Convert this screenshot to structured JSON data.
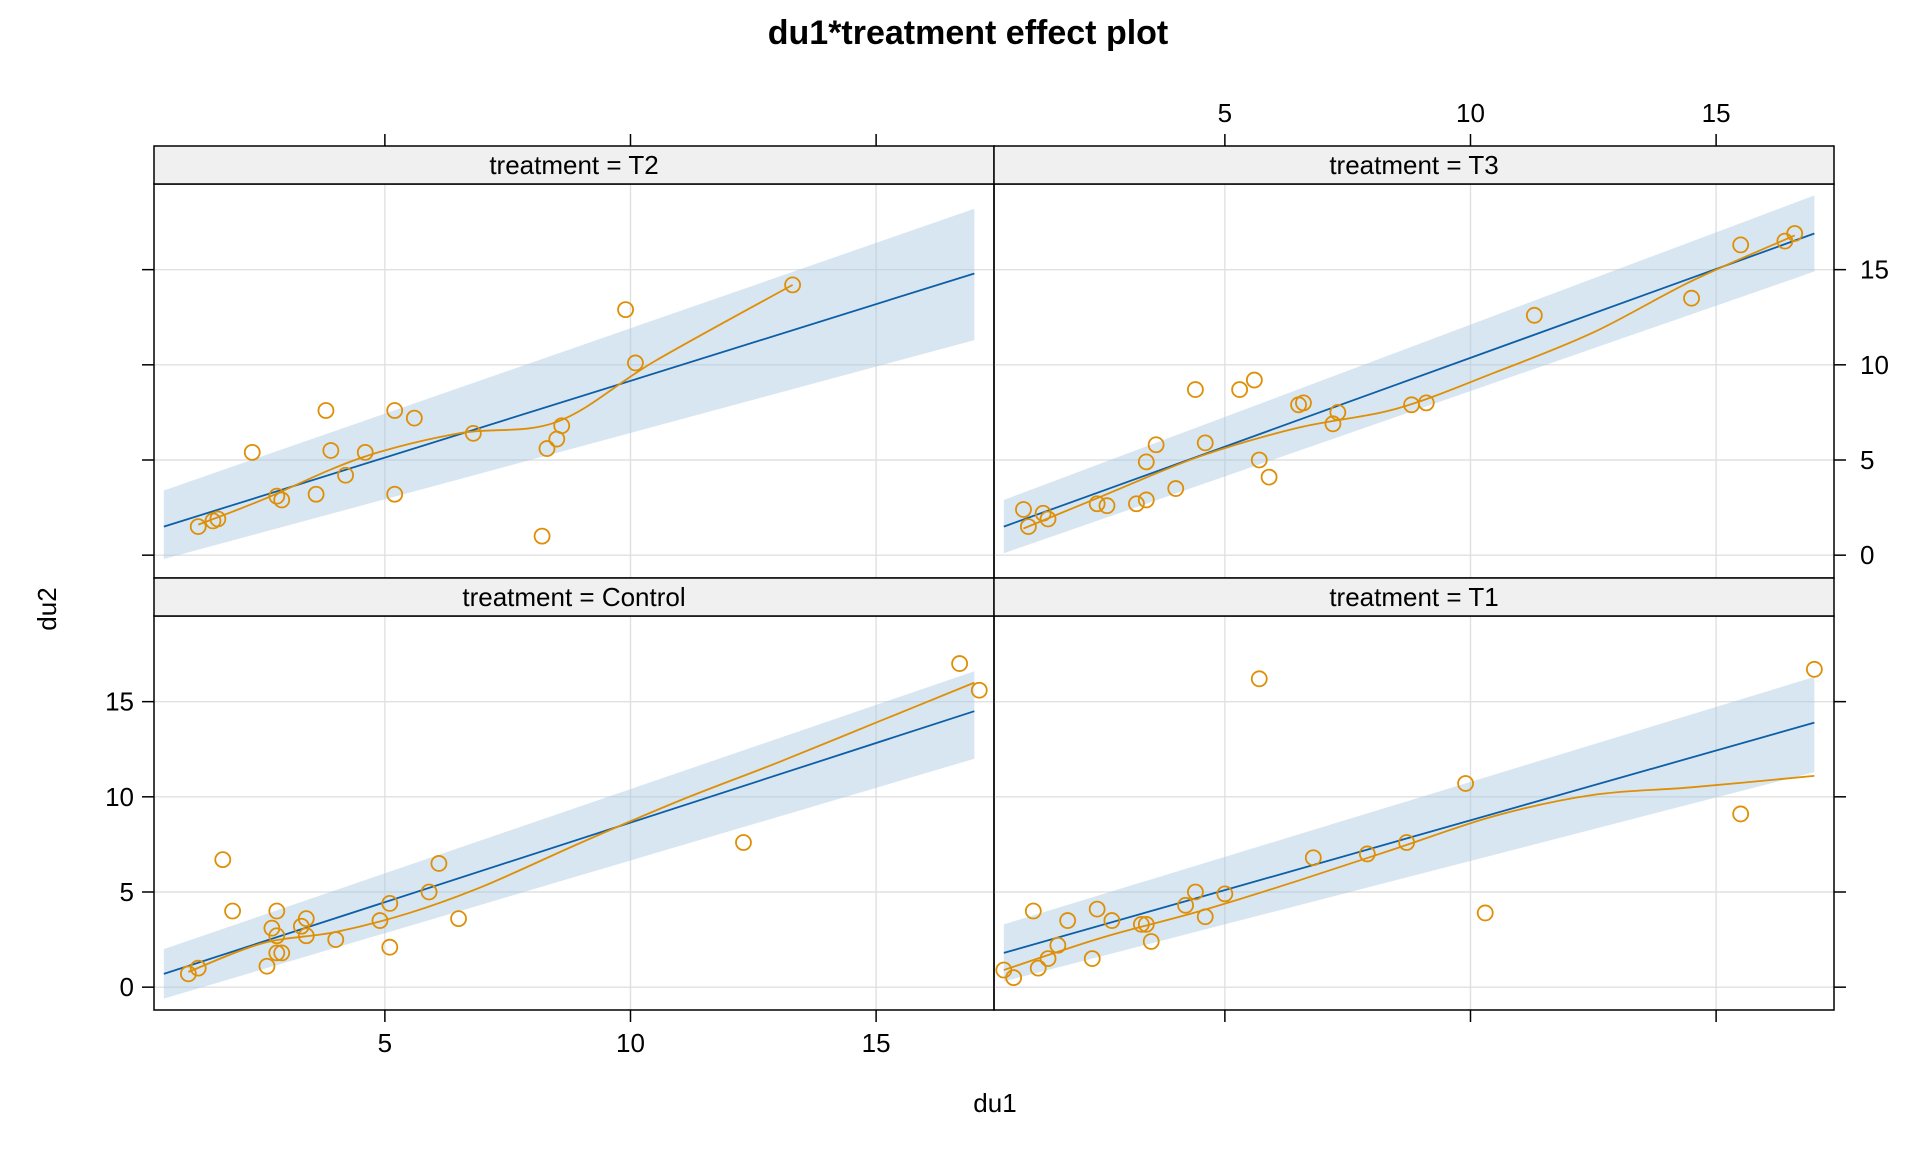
{
  "chart_data": {
    "type": "scatter",
    "title": "du1*treatment effect plot",
    "xlabel": "du1",
    "ylabel": "du2",
    "xlim": [
      0.3,
      17.4
    ],
    "ylim": [
      -1.2,
      19.5
    ],
    "x_ticks": [
      5,
      10,
      15
    ],
    "y_ticks": [
      0,
      5,
      10,
      15
    ],
    "grid": true,
    "layout": "2x2",
    "colors": {
      "band": "#a9c7e3",
      "fit": "#0d5fa6",
      "points": "#de8f05",
      "strip": "#f0f0f0"
    },
    "panels": [
      {
        "label": "treatment = T2",
        "row": 0,
        "col": 0,
        "fit": {
          "x": [
            0.5,
            17.0
          ],
          "y": [
            1.5,
            14.8
          ]
        },
        "band": {
          "x": [
            0.5,
            17.0
          ],
          "upper": [
            3.4,
            18.2
          ],
          "lower": [
            -0.2,
            11.3
          ]
        },
        "smooth": {
          "x": [
            1.2,
            2.5,
            4.5,
            6.5,
            8.5,
            10.5,
            13.3
          ],
          "y": [
            1.6,
            2.9,
            5.1,
            6.4,
            7.0,
            10.2,
            14.2
          ]
        },
        "points": [
          [
            1.2,
            1.5
          ],
          [
            1.5,
            1.8
          ],
          [
            1.6,
            1.9
          ],
          [
            2.3,
            5.4
          ],
          [
            2.8,
            3.1
          ],
          [
            2.9,
            2.9
          ],
          [
            3.6,
            3.2
          ],
          [
            3.8,
            7.6
          ],
          [
            3.9,
            5.5
          ],
          [
            4.2,
            4.2
          ],
          [
            4.6,
            5.4
          ],
          [
            5.2,
            7.6
          ],
          [
            5.2,
            3.2
          ],
          [
            5.6,
            7.2
          ],
          [
            6.8,
            6.4
          ],
          [
            8.2,
            1.0
          ],
          [
            8.3,
            5.6
          ],
          [
            8.5,
            6.1
          ],
          [
            8.6,
            6.8
          ],
          [
            9.9,
            12.9
          ],
          [
            10.1,
            10.1
          ],
          [
            13.3,
            14.2
          ]
        ]
      },
      {
        "label": "treatment = T3",
        "row": 0,
        "col": 1,
        "fit": {
          "x": [
            0.5,
            17.0
          ],
          "y": [
            1.5,
            16.9
          ]
        },
        "band": {
          "x": [
            0.5,
            17.0
          ],
          "upper": [
            2.9,
            18.9
          ],
          "lower": [
            0.1,
            14.9
          ]
        },
        "smooth": {
          "x": [
            0.9,
            2.5,
            4.5,
            6.5,
            8.5,
            10.5,
            12.5,
            14.5,
            16.6
          ],
          "y": [
            1.4,
            3.1,
            5.2,
            6.7,
            7.7,
            9.6,
            11.7,
            14.4,
            16.8
          ]
        },
        "points": [
          [
            0.9,
            2.4
          ],
          [
            1.0,
            1.5
          ],
          [
            1.3,
            2.2
          ],
          [
            1.4,
            1.9
          ],
          [
            2.4,
            2.7
          ],
          [
            2.6,
            2.6
          ],
          [
            3.2,
            2.7
          ],
          [
            3.4,
            2.9
          ],
          [
            3.4,
            4.9
          ],
          [
            3.6,
            5.8
          ],
          [
            4.0,
            3.5
          ],
          [
            4.4,
            8.7
          ],
          [
            4.6,
            5.9
          ],
          [
            5.3,
            8.7
          ],
          [
            5.6,
            9.2
          ],
          [
            5.7,
            5.0
          ],
          [
            5.9,
            4.1
          ],
          [
            6.5,
            7.9
          ],
          [
            6.6,
            8.0
          ],
          [
            7.2,
            6.9
          ],
          [
            7.3,
            7.5
          ],
          [
            8.8,
            7.9
          ],
          [
            9.1,
            8.0
          ],
          [
            11.3,
            12.6
          ],
          [
            14.5,
            13.5
          ],
          [
            15.5,
            16.3
          ],
          [
            16.4,
            16.5
          ],
          [
            16.6,
            16.9
          ]
        ]
      },
      {
        "label": "treatment = Control",
        "row": 1,
        "col": 0,
        "fit": {
          "x": [
            0.5,
            17.0
          ],
          "y": [
            0.7,
            14.5
          ]
        },
        "band": {
          "x": [
            0.5,
            17.0
          ],
          "upper": [
            2.0,
            16.6
          ],
          "lower": [
            -0.6,
            12.0
          ]
        },
        "smooth": {
          "x": [
            1.0,
            2.5,
            4.0,
            5.5,
            7.0,
            9.0,
            11.0,
            13.0,
            15.0,
            17.0
          ],
          "y": [
            0.8,
            2.3,
            2.9,
            3.9,
            5.3,
            7.6,
            9.8,
            11.8,
            13.9,
            16.0
          ]
        },
        "points": [
          [
            1.0,
            0.7
          ],
          [
            1.2,
            1.0
          ],
          [
            1.7,
            6.7
          ],
          [
            1.9,
            4.0
          ],
          [
            2.6,
            1.1
          ],
          [
            2.7,
            3.1
          ],
          [
            2.8,
            1.8
          ],
          [
            2.8,
            4.0
          ],
          [
            2.8,
            2.7
          ],
          [
            2.9,
            1.8
          ],
          [
            3.3,
            3.2
          ],
          [
            3.4,
            2.7
          ],
          [
            3.4,
            3.6
          ],
          [
            4.0,
            2.5
          ],
          [
            4.9,
            3.5
          ],
          [
            5.1,
            4.4
          ],
          [
            5.1,
            2.1
          ],
          [
            5.9,
            5.0
          ],
          [
            6.1,
            6.5
          ],
          [
            6.5,
            3.6
          ],
          [
            12.3,
            7.6
          ],
          [
            16.7,
            17.0
          ],
          [
            17.1,
            15.6
          ]
        ]
      },
      {
        "label": "treatment = T1",
        "row": 1,
        "col": 1,
        "fit": {
          "x": [
            0.5,
            17.0
          ],
          "y": [
            1.8,
            13.9
          ]
        },
        "band": {
          "x": [
            0.5,
            17.0
          ],
          "upper": [
            3.3,
            16.3
          ],
          "lower": [
            0.3,
            11.3
          ]
        },
        "smooth": {
          "x": [
            0.5,
            2.5,
            4.5,
            6.5,
            8.5,
            10.5,
            12.5,
            14.5,
            17.0
          ],
          "y": [
            0.9,
            2.6,
            4.0,
            5.6,
            7.3,
            9.0,
            10.1,
            10.5,
            11.1
          ]
        },
        "points": [
          [
            0.5,
            0.9
          ],
          [
            0.7,
            0.5
          ],
          [
            1.1,
            4.0
          ],
          [
            1.2,
            1.0
          ],
          [
            1.4,
            1.5
          ],
          [
            1.6,
            2.2
          ],
          [
            1.8,
            3.5
          ],
          [
            2.3,
            1.5
          ],
          [
            2.4,
            4.1
          ],
          [
            2.7,
            3.5
          ],
          [
            3.3,
            3.3
          ],
          [
            3.4,
            3.3
          ],
          [
            3.5,
            2.4
          ],
          [
            4.2,
            4.3
          ],
          [
            4.4,
            5.0
          ],
          [
            4.6,
            3.7
          ],
          [
            5.0,
            4.9
          ],
          [
            5.7,
            16.2
          ],
          [
            6.8,
            6.8
          ],
          [
            7.9,
            7.0
          ],
          [
            8.7,
            7.6
          ],
          [
            9.9,
            10.7
          ],
          [
            10.3,
            3.9
          ],
          [
            15.5,
            9.1
          ],
          [
            17.0,
            16.7
          ]
        ]
      }
    ]
  }
}
